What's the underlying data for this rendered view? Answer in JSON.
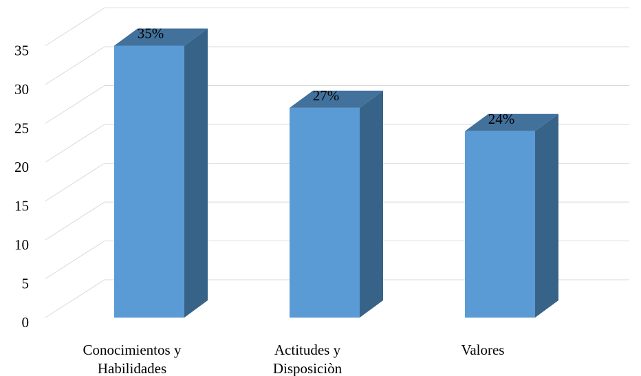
{
  "chart_data": {
    "type": "bar",
    "style": "3d-column",
    "categories": [
      [
        "Conocimientos y",
        "Habilidades"
      ],
      [
        "Actitudes y",
        "Disposiciòn"
      ],
      [
        "Valores"
      ]
    ],
    "values": [
      35,
      27,
      24
    ],
    "data_labels": [
      "35%",
      "27%",
      "24%"
    ],
    "title": "",
    "xlabel": "",
    "ylabel": "",
    "ylim": [
      0,
      35
    ],
    "yticks": [
      0,
      5,
      10,
      15,
      20,
      25,
      30,
      35
    ],
    "ytick_labels": [
      "0",
      "5",
      "10",
      "15",
      "20",
      "25",
      "30",
      "35"
    ],
    "grid": true,
    "legend": "none",
    "colors": {
      "bar_front": "#5b9bd5",
      "bar_side": "#386388",
      "bar_top": "#42719c",
      "grid": "#d9d9d9"
    }
  }
}
